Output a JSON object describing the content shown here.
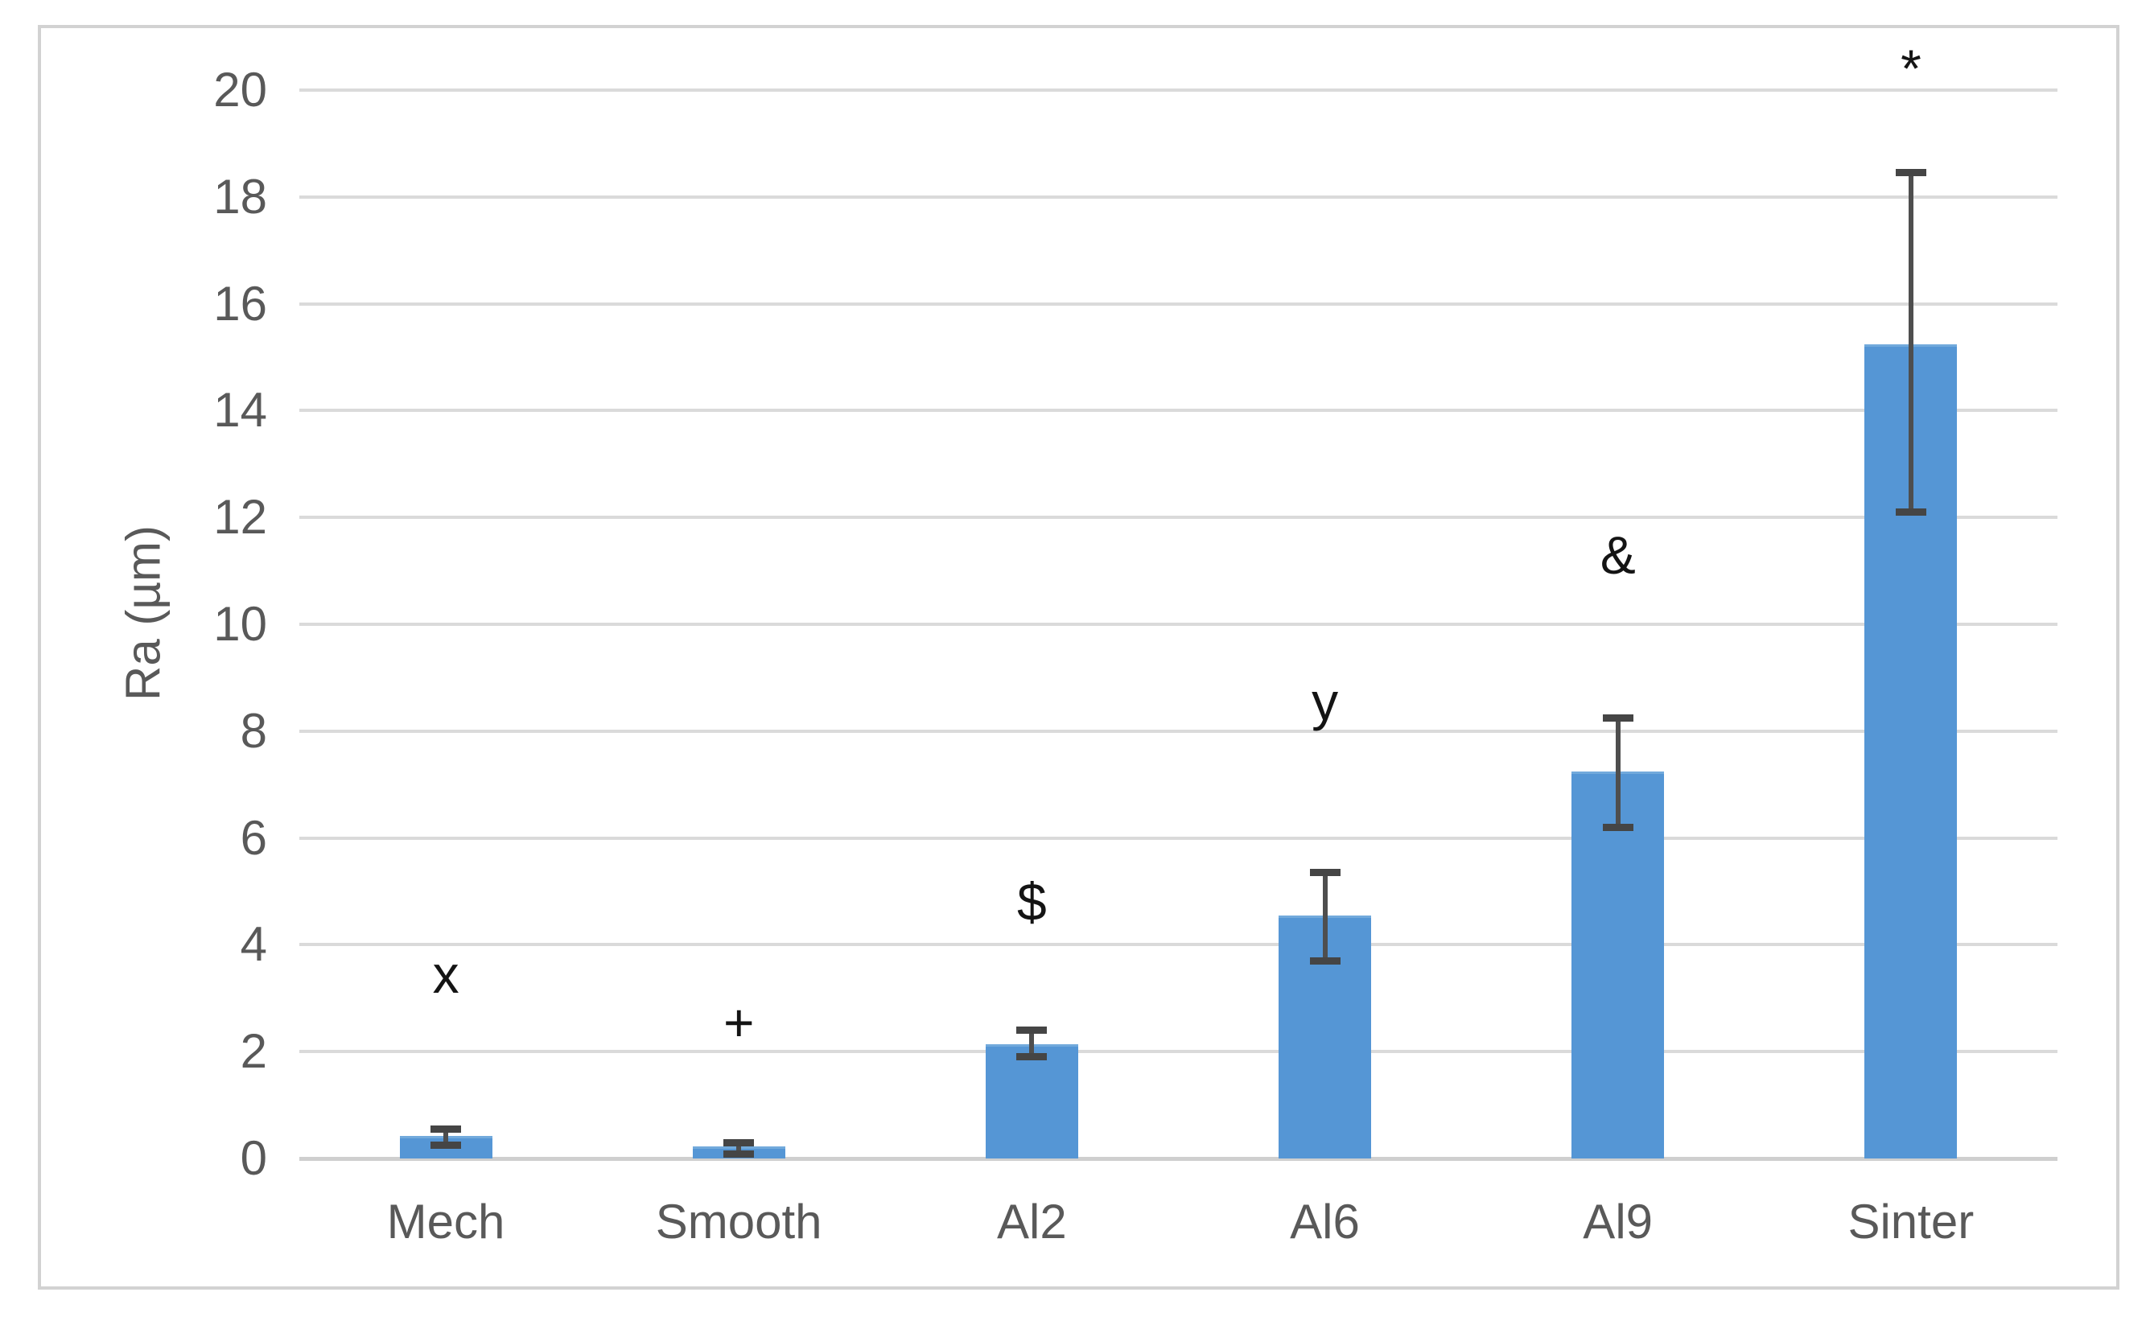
{
  "chart_data": {
    "type": "bar",
    "title": "",
    "xlabel": "",
    "ylabel": "Ra (µm)",
    "ylim": [
      0,
      20
    ],
    "ytick_step": 2,
    "yticks": [
      0,
      2,
      4,
      6,
      8,
      10,
      12,
      14,
      16,
      18,
      20
    ],
    "grid": true,
    "legend": false,
    "categories": [
      "Mech",
      "Smooth",
      "Al2",
      "Al6",
      "Al9",
      "Sinter"
    ],
    "series": [
      {
        "name": "Ra",
        "values": [
          0.37,
          0.18,
          2.1,
          4.5,
          7.2,
          15.2
        ],
        "error_low": [
          0.25,
          0.08,
          1.9,
          3.7,
          6.2,
          12.1
        ],
        "error_high": [
          0.55,
          0.3,
          2.4,
          5.35,
          8.25,
          18.45
        ]
      }
    ],
    "annotations": [
      {
        "category": "Mech",
        "symbol": "x",
        "y": 3.45
      },
      {
        "category": "Smooth",
        "symbol": "+",
        "y": 2.55
      },
      {
        "category": "Al2",
        "symbol": "$",
        "y": 4.8
      },
      {
        "category": "Al6",
        "symbol": "y",
        "y": 8.55
      },
      {
        "category": "Al9",
        "symbol": "&",
        "y": 11.3
      },
      {
        "category": "Sinter",
        "symbol": "*",
        "y": 20.4
      }
    ],
    "colors": {
      "bar_fill": "#5596d5",
      "bar_edge_highlight": "#72aadc",
      "error_bar": "#4e4e4e",
      "gridline": "#dadada",
      "zero_line": "#cfcfcf",
      "axis_text": "#595959",
      "annotation_text": "#141414",
      "frame_border": "#d2d2d2",
      "background": "#ffffff"
    }
  }
}
